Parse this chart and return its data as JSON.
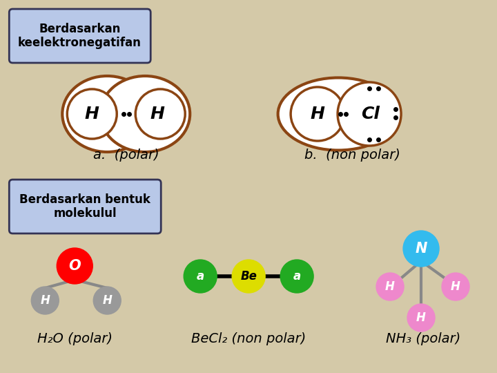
{
  "bg_color": "#d4c9a8",
  "title1": "Berdasarkan\nkeelektronegatifan",
  "title2": "Berdasarkan bentuk\nmolekulul",
  "box1_bg": "#b8c8e8",
  "box2_bg": "#b8c8e8",
  "brown": "#8B4513",
  "dark_brown": "#7a3a10",
  "label_a": "a.  (polar)",
  "label_b": "b.  (non polar)",
  "label_h2o": "H₂O (polar)",
  "label_becl2": "BeCl₂ (non polar)",
  "label_nh3": "NH₃ (polar)"
}
